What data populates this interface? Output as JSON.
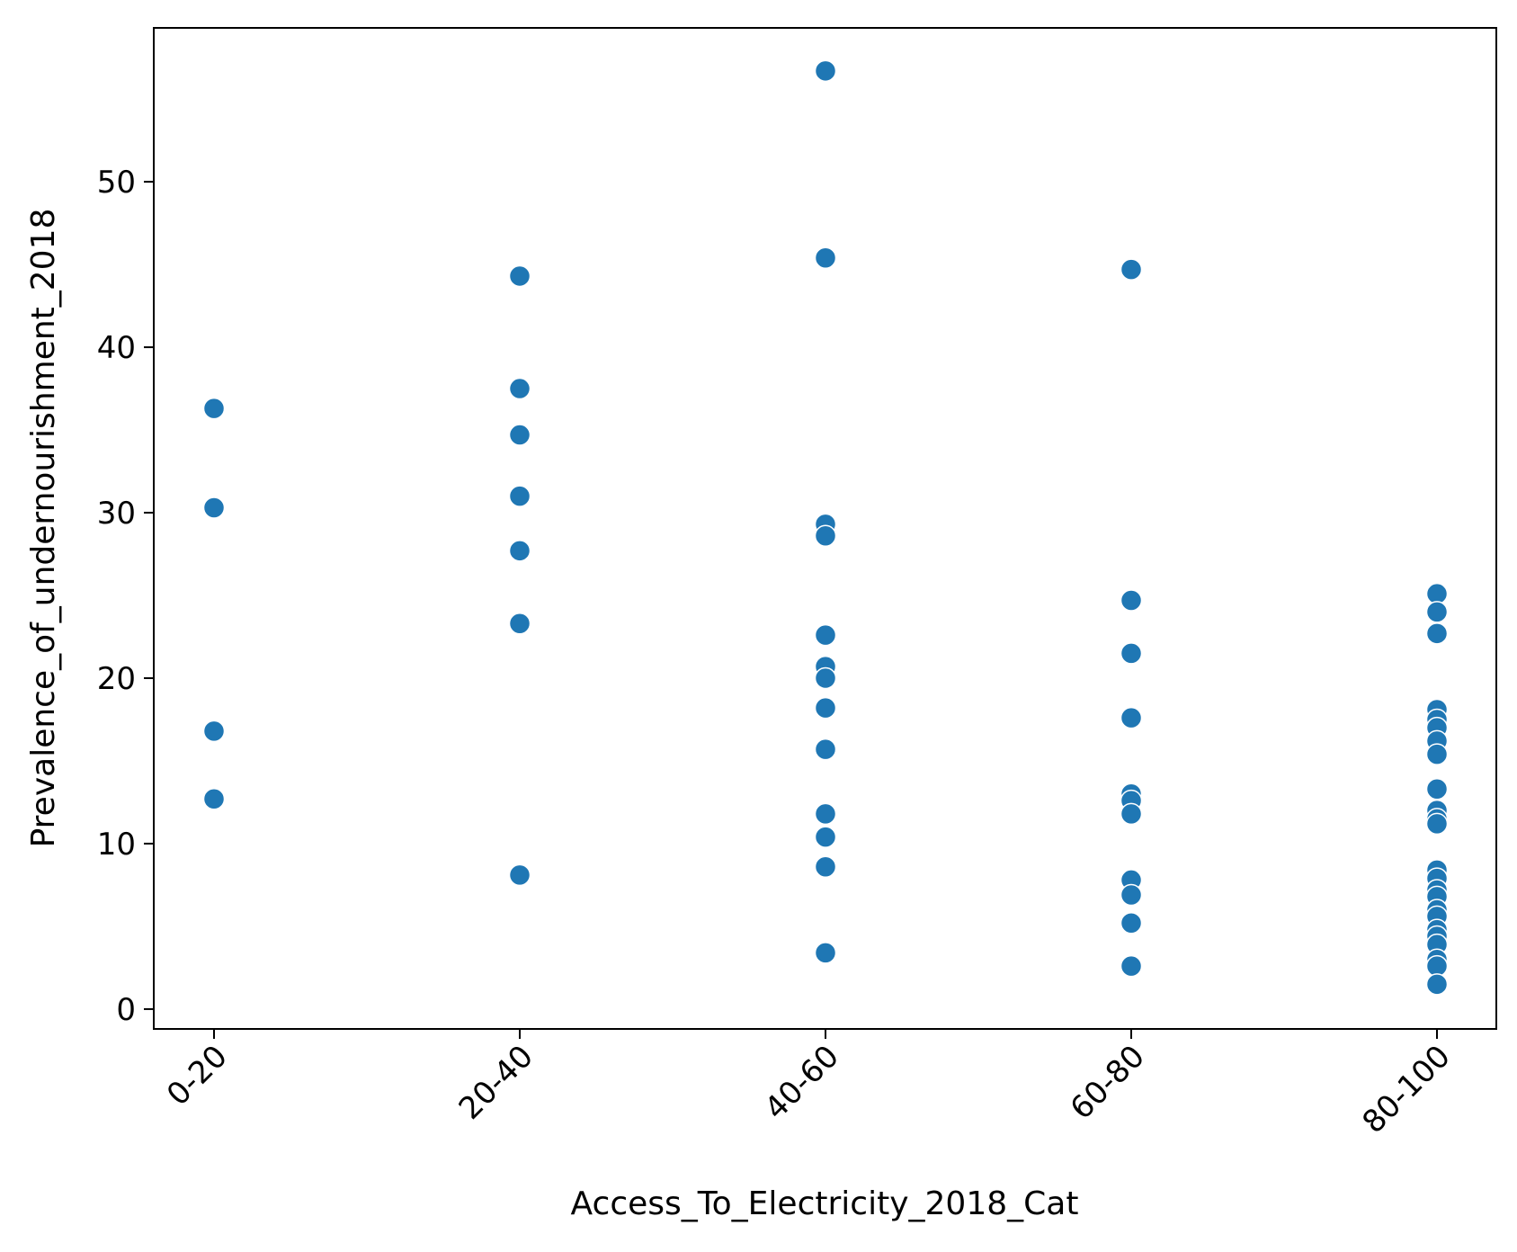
{
  "chart_data": {
    "type": "scatter",
    "title": "",
    "xlabel": "Access_To_Electricity_2018_Cat",
    "ylabel": "Prevalence_of_undernourishment_2018",
    "categories": [
      "0-20",
      "20-40",
      "40-60",
      "60-80",
      "80-100"
    ],
    "y_ticks": [
      "0",
      "10",
      "20",
      "30",
      "40",
      "50"
    ],
    "ylim": [
      -1.2,
      59.3
    ],
    "grid": false,
    "marker_color": "#1f77b4",
    "series": [
      {
        "points": [
          {
            "x": "0-20",
            "y": 36.3
          },
          {
            "x": "0-20",
            "y": 30.3
          },
          {
            "x": "0-20",
            "y": 16.8
          },
          {
            "x": "0-20",
            "y": 12.7
          },
          {
            "x": "20-40",
            "y": 44.3
          },
          {
            "x": "20-40",
            "y": 37.5
          },
          {
            "x": "20-40",
            "y": 34.7
          },
          {
            "x": "20-40",
            "y": 31.0
          },
          {
            "x": "20-40",
            "y": 27.7
          },
          {
            "x": "20-40",
            "y": 23.3
          },
          {
            "x": "20-40",
            "y": 8.1
          },
          {
            "x": "40-60",
            "y": 56.7
          },
          {
            "x": "40-60",
            "y": 45.4
          },
          {
            "x": "40-60",
            "y": 29.3
          },
          {
            "x": "40-60",
            "y": 28.6
          },
          {
            "x": "40-60",
            "y": 22.6
          },
          {
            "x": "40-60",
            "y": 20.7
          },
          {
            "x": "40-60",
            "y": 20.0
          },
          {
            "x": "40-60",
            "y": 18.2
          },
          {
            "x": "40-60",
            "y": 15.7
          },
          {
            "x": "40-60",
            "y": 11.8
          },
          {
            "x": "40-60",
            "y": 10.4
          },
          {
            "x": "40-60",
            "y": 8.6
          },
          {
            "x": "40-60",
            "y": 3.4
          },
          {
            "x": "60-80",
            "y": 44.7
          },
          {
            "x": "60-80",
            "y": 24.7
          },
          {
            "x": "60-80",
            "y": 21.5
          },
          {
            "x": "60-80",
            "y": 17.6
          },
          {
            "x": "60-80",
            "y": 13.0
          },
          {
            "x": "60-80",
            "y": 12.6
          },
          {
            "x": "60-80",
            "y": 11.8
          },
          {
            "x": "60-80",
            "y": 7.8
          },
          {
            "x": "60-80",
            "y": 6.9
          },
          {
            "x": "60-80",
            "y": 5.2
          },
          {
            "x": "60-80",
            "y": 2.6
          },
          {
            "x": "80-100",
            "y": 25.1
          },
          {
            "x": "80-100",
            "y": 24.0
          },
          {
            "x": "80-100",
            "y": 22.7
          },
          {
            "x": "80-100",
            "y": 18.1
          },
          {
            "x": "80-100",
            "y": 17.5
          },
          {
            "x": "80-100",
            "y": 17.0
          },
          {
            "x": "80-100",
            "y": 16.2
          },
          {
            "x": "80-100",
            "y": 15.4
          },
          {
            "x": "80-100",
            "y": 13.3
          },
          {
            "x": "80-100",
            "y": 12.0
          },
          {
            "x": "80-100",
            "y": 11.5
          },
          {
            "x": "80-100",
            "y": 11.2
          },
          {
            "x": "80-100",
            "y": 8.4
          },
          {
            "x": "80-100",
            "y": 7.9
          },
          {
            "x": "80-100",
            "y": 7.2
          },
          {
            "x": "80-100",
            "y": 6.8
          },
          {
            "x": "80-100",
            "y": 6.0
          },
          {
            "x": "80-100",
            "y": 5.6
          },
          {
            "x": "80-100",
            "y": 4.8
          },
          {
            "x": "80-100",
            "y": 4.4
          },
          {
            "x": "80-100",
            "y": 3.9
          },
          {
            "x": "80-100",
            "y": 3.0
          },
          {
            "x": "80-100",
            "y": 2.6
          },
          {
            "x": "80-100",
            "y": 1.5
          }
        ]
      }
    ]
  }
}
